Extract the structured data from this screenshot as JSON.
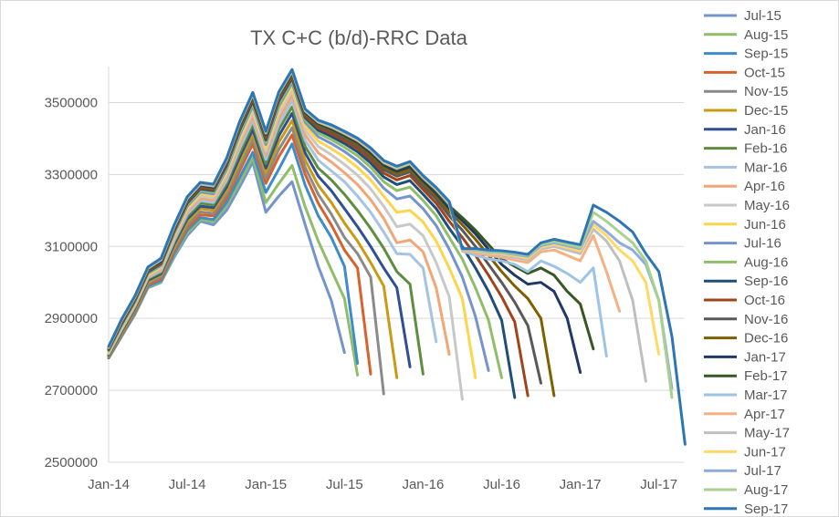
{
  "chart_data": {
    "type": "line",
    "title": "TX C+C (b/d)-RRC Data",
    "xlabel": "",
    "ylabel": "",
    "x_start": "Jan-14",
    "x_end": "Sep-17",
    "ylim": [
      2500000,
      3600000
    ],
    "y_ticks": [
      2500000,
      2700000,
      2900000,
      3100000,
      3300000,
      3500000
    ],
    "y_tick_labels": [
      "2500000",
      "2700000",
      "2900000",
      "3100000",
      "3300000",
      "3500000"
    ],
    "x_ticks": [
      "Jan-14",
      "Jul-14",
      "Jan-15",
      "Jul-15",
      "Jan-16",
      "Jul-16",
      "Jan-17",
      "Jul-17"
    ],
    "grid": "horizontal",
    "legend_position": "right",
    "series": [
      {
        "name": "Jul-15",
        "color": "#7394cc",
        "values": [
          2790000,
          2850000,
          2910000,
          2985000,
          3000000,
          3070000,
          3130000,
          3170000,
          3160000,
          3200000,
          3265000,
          3335000,
          3195000,
          3240000,
          3280000,
          3160000,
          3045000,
          2950000,
          2805000
        ]
      },
      {
        "name": "Aug-15",
        "color": "#8fbd6a",
        "values": [
          2790000,
          2850000,
          2912000,
          2988000,
          3002000,
          3075000,
          3138000,
          3175000,
          3168000,
          3212000,
          3278000,
          3348000,
          3222000,
          3275000,
          3325000,
          3210000,
          3115000,
          3035000,
          2955000,
          2742000
        ]
      },
      {
        "name": "Sep-15",
        "color": "#3e8dc9",
        "values": [
          2790000,
          2852000,
          2915000,
          2990000,
          3005000,
          3080000,
          3145000,
          3180000,
          3175000,
          3222000,
          3292000,
          3362000,
          3250000,
          3315000,
          3385000,
          3270000,
          3185000,
          3125000,
          3045000,
          2775000
        ]
      },
      {
        "name": "Oct-15",
        "color": "#d8622b",
        "values": [
          2792000,
          2855000,
          2918000,
          2994000,
          3010000,
          3087000,
          3152000,
          3188000,
          3185000,
          3235000,
          3310000,
          3385000,
          3275000,
          3350000,
          3410000,
          3300000,
          3220000,
          3160000,
          3090000,
          3040000,
          2745000
        ]
      },
      {
        "name": "Nov-15",
        "color": "#8a8a8a",
        "values": [
          2794000,
          2858000,
          2922000,
          2998000,
          3015000,
          3093000,
          3160000,
          3196000,
          3192000,
          3245000,
          3322000,
          3398000,
          3290000,
          3370000,
          3430000,
          3320000,
          3245000,
          3190000,
          3125000,
          3080000,
          3015000,
          2690000
        ]
      },
      {
        "name": "Dec-15",
        "color": "#c99a14",
        "values": [
          2796000,
          2861000,
          2925000,
          3002000,
          3020000,
          3100000,
          3168000,
          3205000,
          3200000,
          3255000,
          3335000,
          3412000,
          3305000,
          3390000,
          3450000,
          3340000,
          3270000,
          3222000,
          3165000,
          3115000,
          3055000,
          2990000,
          2735000
        ]
      },
      {
        "name": "Jan-16",
        "color": "#2f4f93",
        "values": [
          2798000,
          2864000,
          2928000,
          3006000,
          3024000,
          3106000,
          3176000,
          3212000,
          3208000,
          3265000,
          3348000,
          3425000,
          3318000,
          3408000,
          3470000,
          3360000,
          3295000,
          3255000,
          3205000,
          3155000,
          3100000,
          3040000,
          2985000,
          2765000
        ]
      },
      {
        "name": "Feb-16",
        "color": "#5c8e3e",
        "values": [
          2800000,
          2867000,
          2931000,
          3010000,
          3028000,
          3112000,
          3183000,
          3220000,
          3215000,
          3275000,
          3360000,
          3438000,
          3330000,
          3425000,
          3488000,
          3378000,
          3318000,
          3285000,
          3245000,
          3200000,
          3150000,
          3095000,
          3030000,
          2995000,
          2745000
        ]
      },
      {
        "name": "Mar-16",
        "color": "#a5c3e3",
        "values": [
          2802000,
          2870000,
          2934000,
          3013000,
          3032000,
          3117000,
          3190000,
          3227000,
          3222000,
          3284000,
          3372000,
          3450000,
          3342000,
          3440000,
          3505000,
          3395000,
          3340000,
          3310000,
          3280000,
          3240000,
          3195000,
          3140000,
          3080000,
          3078000,
          3040000,
          2835000
        ]
      },
      {
        "name": "Apr-16",
        "color": "#f2a676",
        "values": [
          2804000,
          2873000,
          2937000,
          3016000,
          3036000,
          3122000,
          3196000,
          3234000,
          3229000,
          3293000,
          3383000,
          3462000,
          3354000,
          3455000,
          3520000,
          3410000,
          3360000,
          3335000,
          3305000,
          3272000,
          3230000,
          3178000,
          3110000,
          3118000,
          3085000,
          2985000,
          2800000
        ]
      },
      {
        "name": "May-16",
        "color": "#c8c8c8",
        "values": [
          2806000,
          2876000,
          2940000,
          3019000,
          3040000,
          3127000,
          3202000,
          3240000,
          3235000,
          3301000,
          3393000,
          3473000,
          3365000,
          3468000,
          3533000,
          3423000,
          3378000,
          3355000,
          3328000,
          3298000,
          3260000,
          3212000,
          3155000,
          3162000,
          3130000,
          3055000,
          2960000,
          2675000
        ]
      },
      {
        "name": "Jun-16",
        "color": "#fdd54c",
        "values": [
          2808000,
          2879000,
          2943000,
          3022000,
          3044000,
          3132000,
          3207000,
          3246000,
          3241000,
          3308000,
          3402000,
          3483000,
          3375000,
          3480000,
          3545000,
          3435000,
          3393000,
          3372000,
          3348000,
          3320000,
          3285000,
          3240000,
          3195000,
          3200000,
          3168000,
          3115000,
          3040000,
          2955000,
          2735000
        ]
      },
      {
        "name": "Jul-16",
        "color": "#7394cc",
        "values": [
          2810000,
          2881000,
          2945000,
          3025000,
          3047000,
          3136000,
          3212000,
          3251000,
          3246000,
          3314000,
          3410000,
          3491000,
          3383000,
          3490000,
          3555000,
          3445000,
          3405000,
          3386000,
          3364000,
          3338000,
          3305000,
          3262000,
          3232000,
          3240000,
          3205000,
          3158000,
          3092000,
          3015000,
          2905000,
          2755000
        ]
      },
      {
        "name": "Aug-16",
        "color": "#8fbd6a",
        "values": [
          2812000,
          2883000,
          2947000,
          3027000,
          3050000,
          3140000,
          3216000,
          3256000,
          3251000,
          3320000,
          3417000,
          3498000,
          3390000,
          3498000,
          3562000,
          3452000,
          3415000,
          3397000,
          3376000,
          3352000,
          3320000,
          3280000,
          3255000,
          3265000,
          3228000,
          3185000,
          3125000,
          3065000,
          2985000,
          2895000,
          2735000
        ]
      },
      {
        "name": "Sep-16",
        "color": "#1f4e79",
        "values": [
          2813000,
          2885000,
          2949000,
          3029000,
          3052000,
          3143000,
          3220000,
          3260000,
          3255000,
          3325000,
          3423000,
          3504000,
          3396000,
          3505000,
          3568000,
          3458000,
          3423000,
          3406000,
          3386000,
          3363000,
          3332000,
          3293000,
          3272000,
          3283000,
          3245000,
          3205000,
          3150000,
          3100000,
          3040000,
          2975000,
          2895000,
          2680000
        ]
      },
      {
        "name": "Oct-16",
        "color": "#a0441c",
        "values": [
          2814000,
          2887000,
          2951000,
          3031000,
          3054000,
          3146000,
          3223000,
          3263000,
          3258000,
          3329000,
          3428000,
          3509000,
          3401000,
          3510000,
          3573000,
          3463000,
          3430000,
          3413000,
          3394000,
          3372000,
          3342000,
          3304000,
          3285000,
          3297000,
          3258000,
          3220000,
          3170000,
          3125000,
          3075000,
          3020000,
          2960000,
          2890000,
          2685000
        ]
      },
      {
        "name": "Nov-16",
        "color": "#595959",
        "values": [
          2815000,
          2889000,
          2953000,
          3033000,
          3056000,
          3148000,
          3226000,
          3266000,
          3261000,
          3332000,
          3432000,
          3513000,
          3405000,
          3515000,
          3577000,
          3467000,
          3435000,
          3419000,
          3400000,
          3379000,
          3350000,
          3313000,
          3295000,
          3307000,
          3268000,
          3232000,
          3185000,
          3145000,
          3100000,
          3050000,
          3000000,
          2945000,
          2880000,
          2720000
        ]
      },
      {
        "name": "Dec-16",
        "color": "#7f6000",
        "values": [
          2816000,
          2890000,
          2955000,
          3035000,
          3058000,
          3150000,
          3228000,
          3268000,
          3263000,
          3335000,
          3435000,
          3516000,
          3408000,
          3518000,
          3580000,
          3470000,
          3439000,
          3423000,
          3405000,
          3384000,
          3356000,
          3320000,
          3303000,
          3315000,
          3276000,
          3241000,
          3197000,
          3160000,
          3120000,
          3075000,
          3030000,
          2990000,
          2955000,
          2900000,
          2685000
        ]
      },
      {
        "name": "Jan-17",
        "color": "#203864",
        "values": [
          2817000,
          2892000,
          2956000,
          3037000,
          3060000,
          3152000,
          3230000,
          3270000,
          3265000,
          3337000,
          3438000,
          3519000,
          3411000,
          3521000,
          3583000,
          3473000,
          3442000,
          3427000,
          3409000,
          3389000,
          3361000,
          3326000,
          3309000,
          3322000,
          3283000,
          3248000,
          3206000,
          3172000,
          3135000,
          3092000,
          3050000,
          3020000,
          2995000,
          3000000,
          2975000,
          2900000,
          2750000
        ]
      },
      {
        "name": "Feb-17",
        "color": "#385723",
        "values": [
          2818000,
          2893000,
          2957000,
          3038000,
          3062000,
          3154000,
          3232000,
          3272000,
          3267000,
          3339000,
          3440000,
          3521000,
          3413000,
          3523000,
          3585000,
          3475000,
          3444000,
          3430000,
          3412000,
          3392000,
          3365000,
          3330000,
          3314000,
          3327000,
          3288000,
          3254000,
          3213000,
          3180000,
          3145000,
          3105000,
          3065000,
          3045000,
          3025000,
          3040000,
          3020000,
          2975000,
          2940000,
          2815000
        ]
      },
      {
        "name": "Mar-17",
        "color": "#9dc3e6",
        "values": [
          2819000,
          2894000,
          2958000,
          3039000,
          3063000,
          3155000,
          3233000,
          3273000,
          3268000,
          3340000,
          3442000,
          3523000,
          3415000,
          3525000,
          3587000,
          3477000,
          3446000,
          3432000,
          3414000,
          3395000,
          3368000,
          3333000,
          3317000,
          3330000,
          3291000,
          3258000,
          3218000,
          3087000,
          3075000,
          3065000,
          3060000,
          3050000,
          3030000,
          3060000,
          3045000,
          3025000,
          3000000,
          3040000,
          2795000
        ]
      },
      {
        "name": "Apr-17",
        "color": "#f4b183",
        "values": [
          2819000,
          2895000,
          2959000,
          3040000,
          3064000,
          3156000,
          3234000,
          3274000,
          3269000,
          3341000,
          3443000,
          3524000,
          3416000,
          3526000,
          3588000,
          3478000,
          3447000,
          3433000,
          3415000,
          3396000,
          3369000,
          3334000,
          3318000,
          3331000,
          3292000,
          3259000,
          3220000,
          3089000,
          3082000,
          3075000,
          3070000,
          3062000,
          3055000,
          3085000,
          3090000,
          3075000,
          3060000,
          3130000,
          3030000,
          2920000
        ]
      },
      {
        "name": "May-17",
        "color": "#bfbfbf",
        "values": [
          2820000,
          2896000,
          2960000,
          3041000,
          3065000,
          3157000,
          3235000,
          3275000,
          3270000,
          3342000,
          3444000,
          3525000,
          3417000,
          3527000,
          3589000,
          3479000,
          3448000,
          3434000,
          3416000,
          3397000,
          3370000,
          3335000,
          3319000,
          3332000,
          3293000,
          3260000,
          3221000,
          3090000,
          3086000,
          3080000,
          3076000,
          3070000,
          3063000,
          3093000,
          3100000,
          3090000,
          3080000,
          3148000,
          3115000,
          3060000,
          2950000,
          2725000
        ]
      },
      {
        "name": "Jun-17",
        "color": "#ffd966",
        "values": [
          2820000,
          2896000,
          2960000,
          3041000,
          3066000,
          3158000,
          3236000,
          3276000,
          3271000,
          3343000,
          3445000,
          3526000,
          3418000,
          3528000,
          3590000,
          3480000,
          3449000,
          3435000,
          3417000,
          3398000,
          3371000,
          3336000,
          3320000,
          3333000,
          3294000,
          3261000,
          3222000,
          3091000,
          3088000,
          3083000,
          3080000,
          3075000,
          3068000,
          3098000,
          3106000,
          3097000,
          3088000,
          3160000,
          3130000,
          3090000,
          3060000,
          3000000,
          2800000
        ]
      },
      {
        "name": "Jul-17",
        "color": "#8faadc",
        "values": [
          2821000,
          2897000,
          2961000,
          3042000,
          3066000,
          3158000,
          3236000,
          3276000,
          3271000,
          3343000,
          3445000,
          3527000,
          3418000,
          3529000,
          3591000,
          3481000,
          3450000,
          3436000,
          3418000,
          3399000,
          3372000,
          3337000,
          3321000,
          3334000,
          3295000,
          3262000,
          3223000,
          3092000,
          3090000,
          3085000,
          3083000,
          3078000,
          3072000,
          3102000,
          3110000,
          3102000,
          3094000,
          3170000,
          3142000,
          3110000,
          3090000,
          3050000,
          2950000,
          2705000
        ]
      },
      {
        "name": "Aug-17",
        "color": "#a9d18e",
        "values": [
          2821000,
          2897000,
          2961000,
          3042000,
          3067000,
          3159000,
          3237000,
          3277000,
          3272000,
          3344000,
          3446000,
          3527000,
          3419000,
          3529000,
          3591000,
          3481000,
          3450000,
          3437000,
          3419000,
          3400000,
          3373000,
          3338000,
          3322000,
          3335000,
          3296000,
          3263000,
          3224000,
          3093000,
          3092000,
          3087000,
          3085000,
          3081000,
          3075000,
          3106000,
          3114000,
          3106000,
          3098000,
          3195000,
          3170000,
          3140000,
          3110000,
          3060000,
          2950000,
          2680000
        ]
      },
      {
        "name": "Sep-17",
        "color": "#2e75b6",
        "values": [
          2822000,
          2898000,
          2962000,
          3043000,
          3067000,
          3160000,
          3238000,
          3278000,
          3273000,
          3345000,
          3447000,
          3528000,
          3420000,
          3530000,
          3592000,
          3482000,
          3451000,
          3438000,
          3420000,
          3401000,
          3374000,
          3339000,
          3323000,
          3336000,
          3297000,
          3264000,
          3225000,
          3094000,
          3094000,
          3090000,
          3088000,
          3084000,
          3078000,
          3110000,
          3120000,
          3112000,
          3105000,
          3215000,
          3195000,
          3170000,
          3140000,
          3080000,
          3030000,
          2850000,
          2550000
        ]
      }
    ]
  }
}
